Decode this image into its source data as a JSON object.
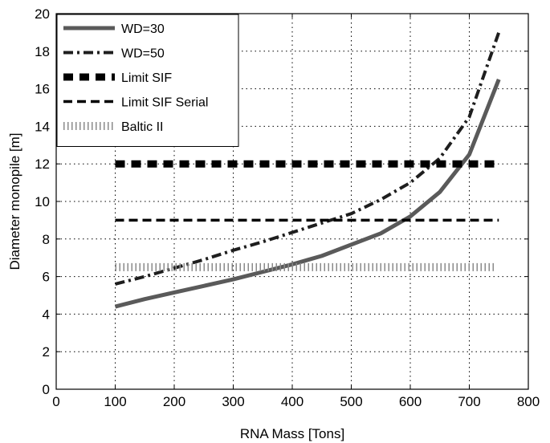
{
  "chart_data": {
    "type": "line",
    "title": "",
    "xlabel": "RNA Mass [Tons]",
    "ylabel": "Diameter monopile [m]",
    "xlim": [
      0,
      800
    ],
    "ylim": [
      0,
      20
    ],
    "xticks": [
      0,
      100,
      200,
      300,
      400,
      500,
      600,
      700,
      800
    ],
    "yticks": [
      0,
      2,
      4,
      6,
      8,
      10,
      12,
      14,
      16,
      18,
      20
    ],
    "grid": true,
    "legend_position": "top-left",
    "series": [
      {
        "name": "WD=30",
        "style": "solid",
        "color": "#5a5a5a",
        "x": [
          100,
          150,
          200,
          250,
          300,
          350,
          400,
          450,
          500,
          550,
          600,
          650,
          700,
          750
        ],
        "y": [
          4.4,
          4.8,
          5.15,
          5.5,
          5.85,
          6.25,
          6.65,
          7.1,
          7.7,
          8.3,
          9.2,
          10.5,
          12.5,
          16.5
        ]
      },
      {
        "name": "WD=50",
        "style": "dashdot",
        "color": "#1e1e1e",
        "x": [
          100,
          150,
          200,
          250,
          300,
          350,
          400,
          450,
          500,
          550,
          600,
          650,
          700,
          750
        ],
        "y": [
          5.6,
          6.0,
          6.45,
          6.9,
          7.4,
          7.85,
          8.35,
          8.85,
          9.35,
          10.1,
          11.0,
          12.3,
          14.5,
          19.0
        ]
      },
      {
        "name": "Limit SIF",
        "style": "heavy-dash",
        "color": "#000000",
        "x": [
          100,
          750
        ],
        "y": [
          12,
          12
        ]
      },
      {
        "name": "Limit SIF Serial",
        "style": "dash",
        "color": "#000000",
        "x": [
          100,
          750
        ],
        "y": [
          9,
          9
        ]
      },
      {
        "name": "Baltic II",
        "style": "hatched",
        "color": "#8a8a8a",
        "x": [
          100,
          745
        ],
        "y": [
          6.5,
          6.5
        ]
      }
    ]
  }
}
